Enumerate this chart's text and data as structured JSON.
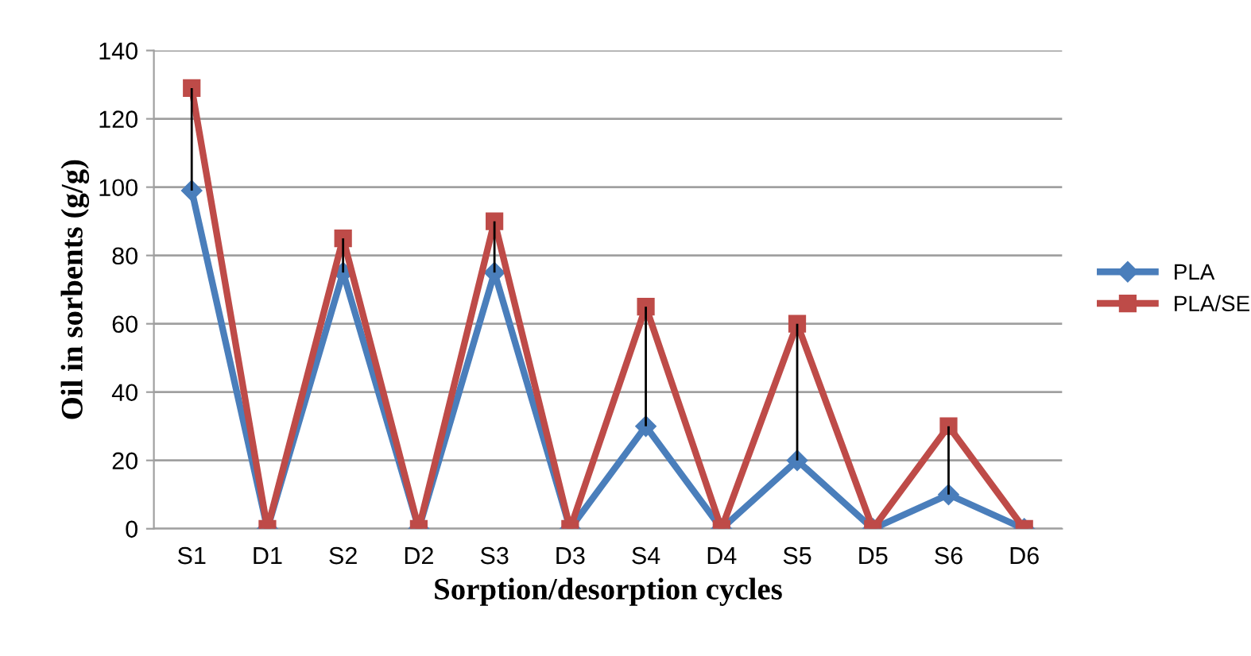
{
  "chart_data": {
    "type": "line",
    "xlabel": "Sorption/desorption cycles",
    "ylabel": "Oil in sorbents (g/g)",
    "categories": [
      "S1",
      "D1",
      "S2",
      "D2",
      "S3",
      "D3",
      "S4",
      "D4",
      "S5",
      "D5",
      "S6",
      "D6"
    ],
    "series": [
      {
        "name": "PLA",
        "color": "#4a7ebb",
        "marker": "diamond",
        "values": [
          99,
          0,
          75,
          0,
          75,
          0,
          30,
          0,
          20,
          0,
          10,
          0
        ]
      },
      {
        "name": "PLA/SE",
        "color": "#be4b48",
        "marker": "square",
        "values": [
          129,
          0,
          85,
          0,
          90,
          0,
          65,
          0,
          60,
          0,
          30,
          0
        ],
        "errors": [
          [
            99,
            129
          ],
          null,
          [
            75,
            85
          ],
          null,
          [
            75,
            90
          ],
          null,
          [
            30,
            65
          ],
          null,
          [
            20,
            60
          ],
          null,
          [
            10,
            30
          ],
          null
        ]
      }
    ],
    "ylim": [
      0,
      140
    ],
    "yticks": [
      0,
      20,
      40,
      60,
      80,
      100,
      120,
      140
    ],
    "grid": "y",
    "legend": "right",
    "line_style": "solid"
  }
}
